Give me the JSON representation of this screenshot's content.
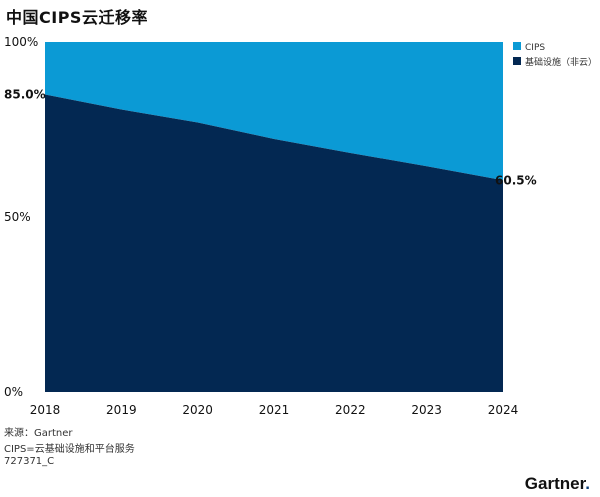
{
  "title": "中国CIPS云迁移率",
  "footer": {
    "source": "来源：Gartner",
    "note": "CIPS=云基础设施和平台服务",
    "id": "727371_C"
  },
  "logo": {
    "text": "Gartner",
    "dot": "."
  },
  "colors": {
    "cips": "#0b9ad5",
    "infra": "#032852"
  },
  "chart_data": {
    "type": "area",
    "stacked": true,
    "percent": true,
    "x": [
      "2018",
      "2019",
      "2020",
      "2021",
      "2022",
      "2023",
      "2024"
    ],
    "series": [
      {
        "name": "基础设施（非云）",
        "values": [
          85.0,
          80.7,
          77.0,
          72.3,
          68.3,
          64.5,
          60.5
        ]
      },
      {
        "name": "CIPS",
        "values": [
          15.0,
          19.3,
          23.0,
          27.7,
          31.7,
          35.5,
          39.5
        ]
      }
    ],
    "y_ticks": [
      "0%",
      "50%",
      "100%"
    ],
    "ylim": [
      0,
      100
    ],
    "data_labels": [
      {
        "x": "2018",
        "label": "85.0%"
      },
      {
        "x": "2024",
        "label": "60.5%"
      }
    ],
    "legend": [
      "CIPS",
      "基础设施（非云）"
    ],
    "legend_position": "top-right",
    "grid": false
  }
}
